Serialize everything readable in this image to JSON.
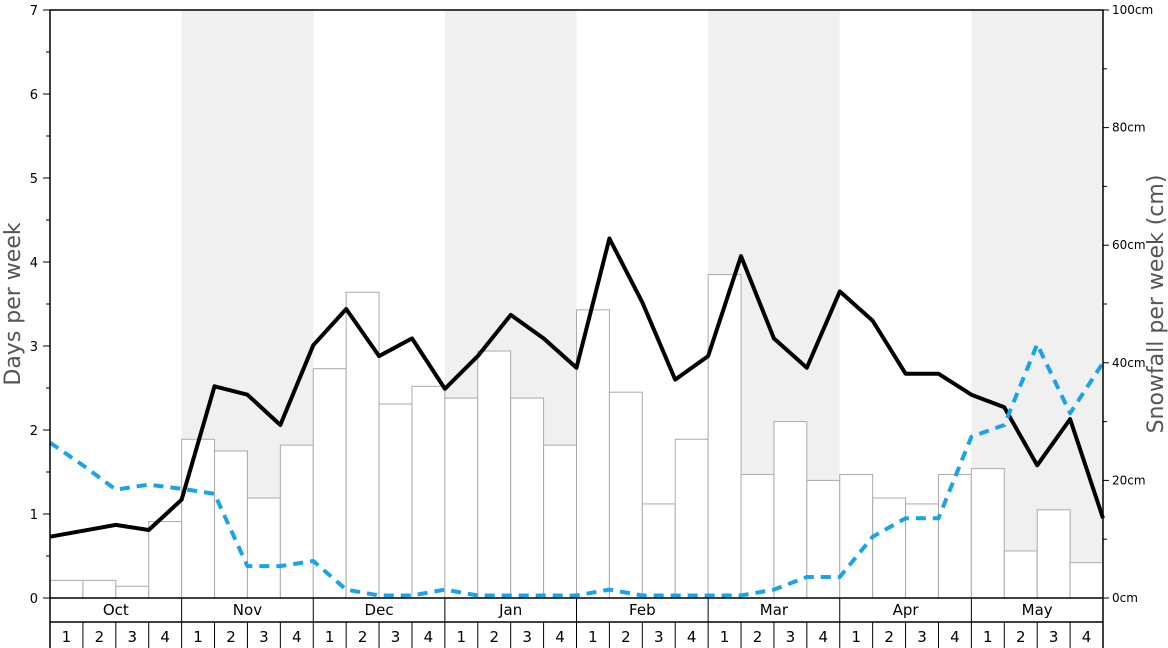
{
  "chart_data": {
    "type": "bar+line",
    "y_left_label": "Days per week",
    "y_right_label": "Snowfall per week (cm)",
    "y_left_range": [
      0,
      7
    ],
    "y_left_ticks": [
      "0",
      "1",
      "2",
      "3",
      "4",
      "5",
      "6",
      "7"
    ],
    "y_right_range": [
      0,
      100
    ],
    "y_right_ticks": [
      "0cm",
      "20cm",
      "40cm",
      "60cm",
      "80cm",
      "100cm"
    ],
    "months": [
      "Oct",
      "Nov",
      "Dec",
      "Jan",
      "Feb",
      "Mar",
      "Apr",
      "May"
    ],
    "weeks": [
      "1",
      "2",
      "3",
      "4"
    ],
    "shaded_months": [
      "Nov",
      "Jan",
      "Mar",
      "May"
    ],
    "colors": {
      "bars_fill": "#ffffff",
      "bars_stroke": "#aaaaaa",
      "snow_days_line": "#000000",
      "dashed_line": "#1aa3e8",
      "shade": "#f0f0f0"
    },
    "series": [
      {
        "kind": "bar",
        "axis": "right",
        "values": [
          3,
          3,
          2,
          13,
          27,
          25,
          17,
          26,
          39,
          52,
          33,
          36,
          34,
          42,
          34,
          26,
          49,
          35,
          16,
          27,
          55,
          21,
          30,
          20,
          21,
          17,
          16,
          21,
          22,
          8,
          15,
          6
        ]
      },
      {
        "kind": "line",
        "axis": "left",
        "style": "solid",
        "values": [
          0.73,
          0.8,
          0.87,
          0.81,
          1.17,
          2.52,
          2.42,
          2.06,
          3.01,
          3.44,
          2.88,
          3.09,
          2.49,
          2.88,
          3.37,
          3.09,
          2.74,
          4.28,
          3.52,
          2.6,
          2.88,
          4.07,
          3.09,
          2.74,
          3.65,
          3.3,
          2.67,
          2.67,
          2.42,
          2.27,
          1.58,
          2.13,
          0.95
        ]
      },
      {
        "kind": "line",
        "axis": "left",
        "style": "dashed",
        "values": [
          1.85,
          1.58,
          1.29,
          1.35,
          1.3,
          1.24,
          0.38,
          0.38,
          0.44,
          0.1,
          0.03,
          0.03,
          0.1,
          0.03,
          0.03,
          0.03,
          0.03,
          0.1,
          0.03,
          0.03,
          0.03,
          0.03,
          0.1,
          0.25,
          0.25,
          0.73,
          0.95,
          0.95,
          1.92,
          2.06,
          3.02,
          2.2,
          2.8
        ]
      }
    ]
  }
}
